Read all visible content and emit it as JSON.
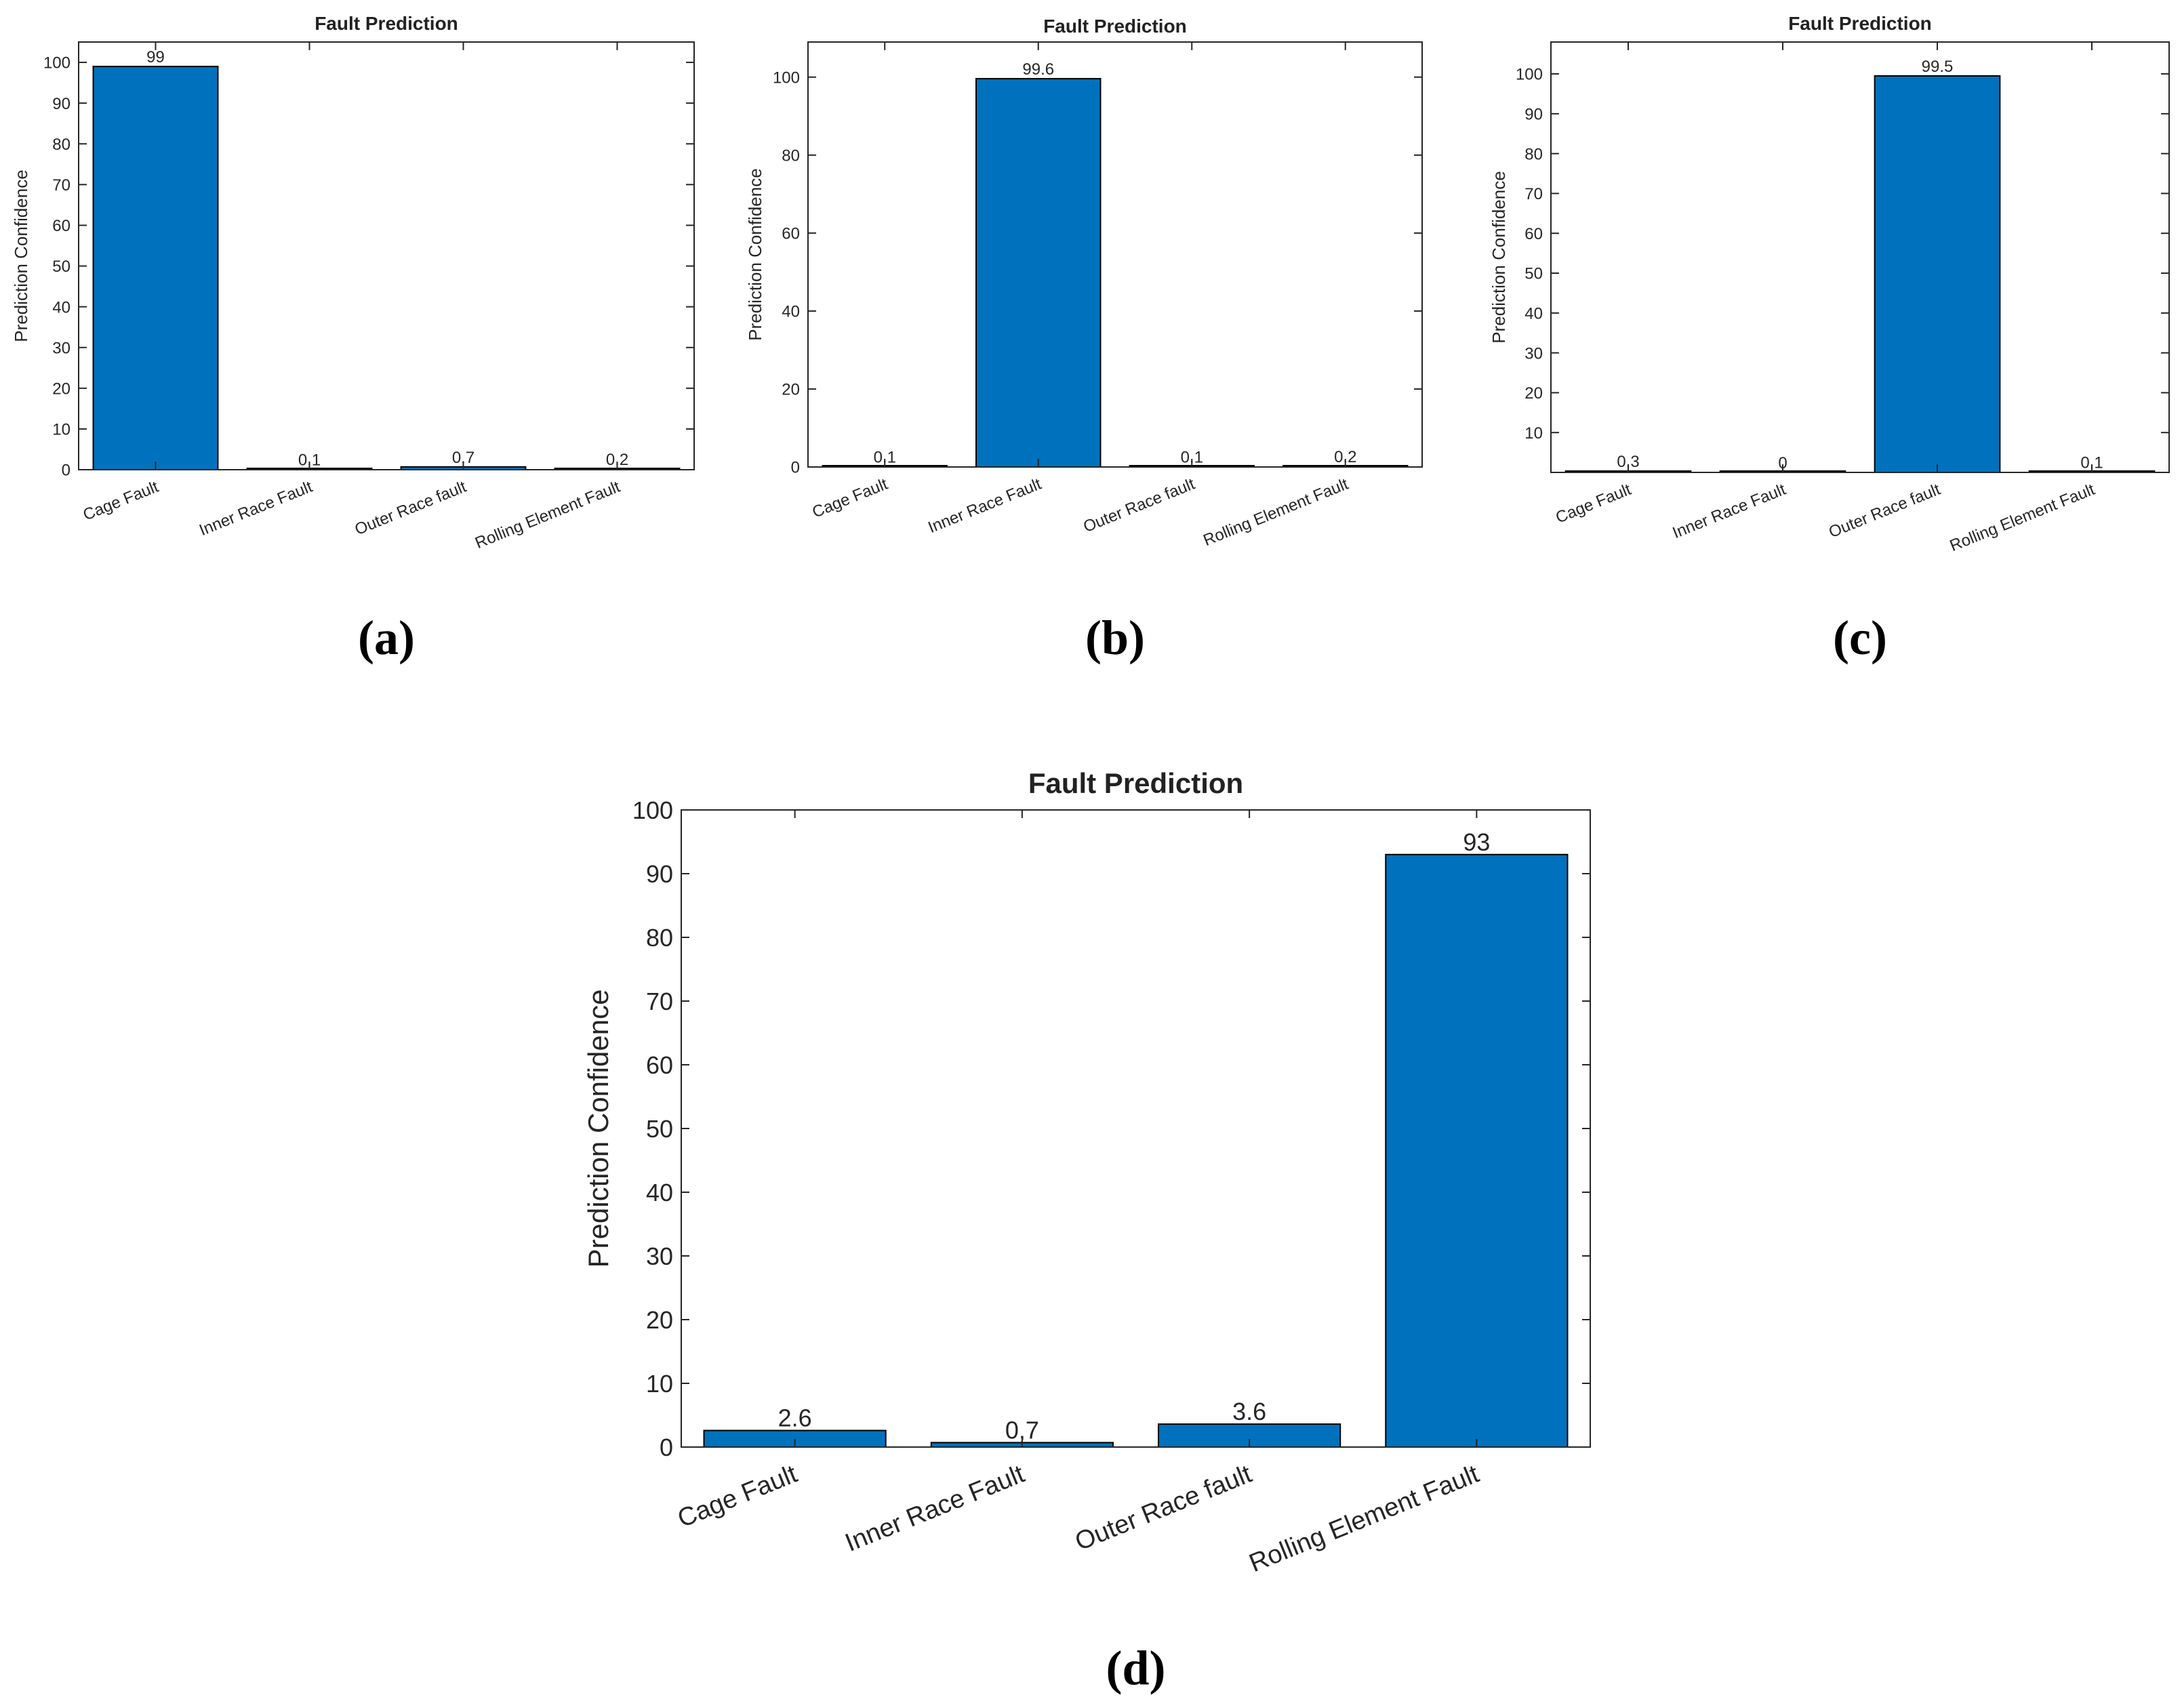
{
  "colors": {
    "bar": "#0072BD",
    "axis": "#262626",
    "background": "#ffffff"
  },
  "chart_data": [
    {
      "type": "bar",
      "panel_label": "(a)",
      "title": "Fault Prediction",
      "xlabel": "",
      "ylabel": "Prediction Confidence",
      "categories": [
        "Cage Fault",
        "Inner Race Fault",
        "Outer Race fault",
        "Rolling Element Fault"
      ],
      "values": [
        99,
        0.1,
        0.7,
        0.2
      ],
      "labels": [
        "99",
        "0.1",
        "0.7",
        "0.2"
      ],
      "ylim": [
        0,
        105
      ],
      "yticks": [
        "0",
        "10",
        "20",
        "30",
        "40",
        "50",
        "60",
        "70",
        "80",
        "90",
        "100"
      ],
      "grid": false
    },
    {
      "type": "bar",
      "panel_label": "(b)",
      "title": "Fault Prediction",
      "xlabel": "",
      "ylabel": "Prediction Confidence",
      "categories": [
        "Cage Fault",
        "Inner Race Fault",
        "Outer Race fault",
        "Rolling Element Fault"
      ],
      "values": [
        0.1,
        99.6,
        0.1,
        0.2
      ],
      "labels": [
        "0.1",
        "99.6",
        "0.1",
        "0.2"
      ],
      "ylim": [
        0,
        109
      ],
      "yticks": [
        "0",
        "20",
        "40",
        "60",
        "80",
        "100"
      ],
      "grid": false
    },
    {
      "type": "bar",
      "panel_label": "(c)",
      "title": "Fault Prediction",
      "xlabel": "",
      "ylabel": "Prediction Confidence",
      "categories": [
        "Cage Fault",
        "Inner Race Fault",
        "Outer Race fault",
        "Rolling Element Fault"
      ],
      "values": [
        0.3,
        0,
        99.5,
        0.1
      ],
      "labels": [
        "0,3",
        "0",
        "99.5",
        "0,1"
      ],
      "ylim": [
        0,
        108
      ],
      "yticks": [
        "10",
        "20",
        "30",
        "40",
        "50",
        "60",
        "70",
        "80",
        "90",
        "100"
      ],
      "grid": false
    },
    {
      "type": "bar",
      "panel_label": "(d)",
      "title": "Fault Prediction",
      "xlabel": "",
      "ylabel": "Prediction Confidence",
      "categories": [
        "Cage Fault",
        "Inner Race Fault",
        "Outer Race fault",
        "Rolling Element Fault"
      ],
      "values": [
        2.6,
        0.7,
        3.6,
        93
      ],
      "labels": [
        "2.6",
        "0,7",
        "3.6",
        "93"
      ],
      "ylim": [
        0,
        100
      ],
      "yticks": [
        "0",
        "10",
        "20",
        "30",
        "40",
        "50",
        "60",
        "70",
        "80",
        "90",
        "100"
      ],
      "grid": false
    }
  ]
}
